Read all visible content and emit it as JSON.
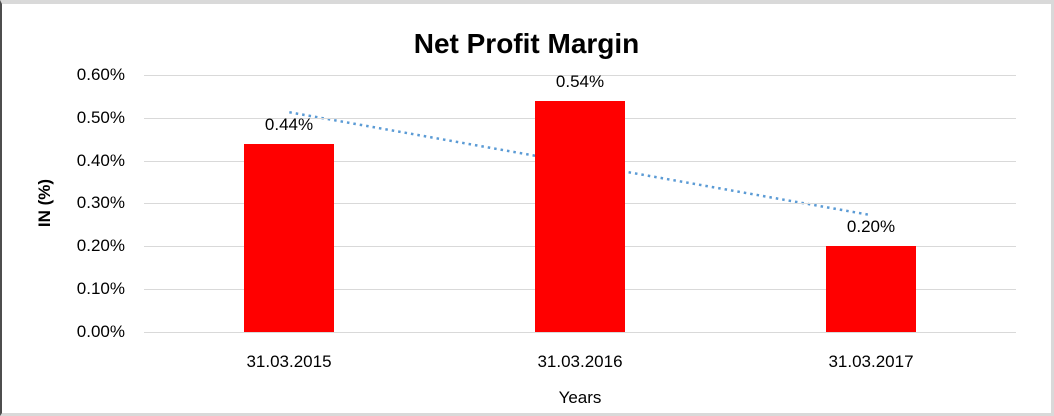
{
  "chart_data": {
    "type": "bar",
    "title": "Net Profit Margin",
    "categories": [
      "31.03.2015",
      "31.03.2016",
      "31.03.2017"
    ],
    "values": [
      0.44,
      0.54,
      0.2
    ],
    "value_labels": [
      "0.44%",
      "0.54%",
      "0.20%"
    ],
    "xlabel": "Years",
    "ylabel": "IN (%)",
    "ylim": [
      0,
      0.6
    ],
    "ytick_step": 0.1,
    "ytick_labels": [
      "0.00%",
      "0.10%",
      "0.20%",
      "0.30%",
      "0.40%",
      "0.50%",
      "0.60%"
    ],
    "grid": true,
    "legend": false,
    "bar_color": "#FF0000",
    "gridline_color": "#D9D9D9",
    "trendline": {
      "style": "dotted",
      "color": "#5B9BD5",
      "start_value": 0.513,
      "end_value": 0.273
    }
  }
}
